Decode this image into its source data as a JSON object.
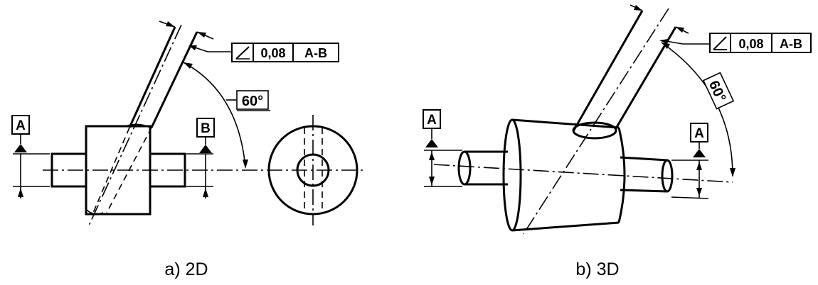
{
  "tolerance_frame": {
    "symbol": "angularity-icon",
    "value": "0,08",
    "datum": "A-B"
  },
  "angle_label": "60°",
  "datum_labels": {
    "a": "A",
    "b": "B"
  },
  "captions": {
    "view_2d": "a) 2D",
    "view_3d": "b) 3D"
  }
}
